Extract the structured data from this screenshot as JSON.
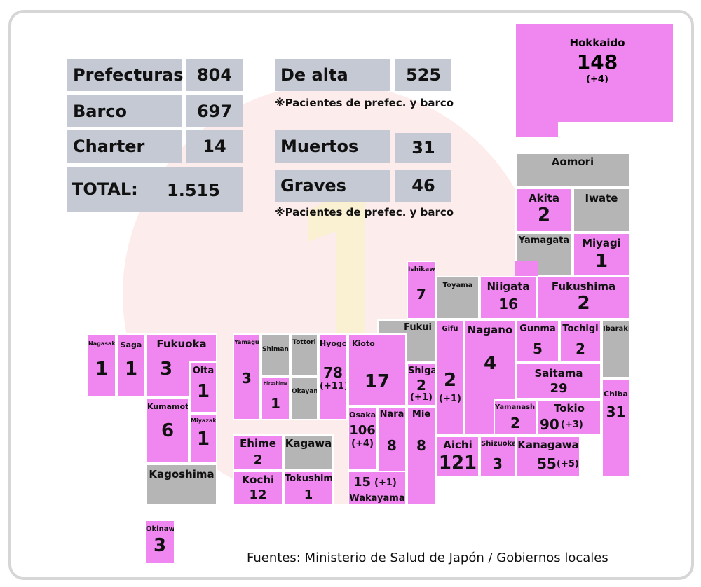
{
  "colors": {
    "infected": "#f087f0",
    "no_cases": "#b5b5b5",
    "stat_box": "#c5c9d3",
    "frame": "#d6d6d6"
  },
  "stats": {
    "prefecturas": {
      "label": "Prefecturas",
      "value": "804"
    },
    "barco": {
      "label": "Barco",
      "value": "697"
    },
    "charter": {
      "label": "Charter",
      "value": "14"
    },
    "total": {
      "label": "TOTAL:",
      "value": "1.515"
    },
    "de_alta": {
      "label": "De alta",
      "value": "525"
    },
    "muertos": {
      "label": "Muertos",
      "value": "31"
    },
    "graves": {
      "label": "Graves",
      "value": "46"
    },
    "note1": "※Pacientes de prefec. y barco",
    "note2": "※Pacientes de prefec. y barco"
  },
  "prefectures": {
    "hokkaido": {
      "name": "Hokkaido",
      "value": "148",
      "delta": "(+4)"
    },
    "aomori": {
      "name": "Aomori"
    },
    "akita": {
      "name": "Akita",
      "value": "2"
    },
    "iwate": {
      "name": "Iwate"
    },
    "yamagata": {
      "name": "Yamagata"
    },
    "miyagi": {
      "name": "Miyagi",
      "value": "1"
    },
    "ishikawa": {
      "name": "Ishikawa",
      "value": "7"
    },
    "toyama": {
      "name": "Toyama"
    },
    "niigata": {
      "name": "Niigata",
      "value": "16"
    },
    "fukushima": {
      "name": "Fukushima",
      "value": "2"
    },
    "fukui": {
      "name": "Fukui"
    },
    "gifu": {
      "name": "Gifu",
      "value": "2",
      "delta": "(+1)"
    },
    "nagano": {
      "name": "Nagano",
      "value": "4"
    },
    "gunma": {
      "name": "Gunma",
      "value": "5"
    },
    "tochigi": {
      "name": "Tochigi",
      "value": "2"
    },
    "ibaraki": {
      "name": "Ibaraki"
    },
    "saitama": {
      "name": "Saitama",
      "value": "29"
    },
    "chiba": {
      "name": "Chiba",
      "value": "31"
    },
    "yamanashi": {
      "name": "Yamanashi",
      "value": "2"
    },
    "tokio": {
      "name": "Tokio",
      "value": "90",
      "delta": "(+3)"
    },
    "aichi": {
      "name": "Aichi",
      "value": "121"
    },
    "shizuoka": {
      "name": "Shizuoka",
      "value": "3"
    },
    "kanagawa": {
      "name": "Kanagawa",
      "value": "55",
      "delta": "(+5)"
    },
    "kioto": {
      "name": "Kioto",
      "value": "17"
    },
    "shiga": {
      "name": "Shiga",
      "value": "2",
      "delta": "(+1)"
    },
    "osaka": {
      "name": "Osaka",
      "value": "106",
      "delta": "(+4)"
    },
    "nara": {
      "name": "Nara",
      "value": "8"
    },
    "mie": {
      "name": "Mie",
      "value": "8"
    },
    "wakayama": {
      "name": "Wakayama",
      "value": "15",
      "delta": "(+1)"
    },
    "hyogo": {
      "name": "Hyogo",
      "value": "78",
      "delta": "(+11)"
    },
    "tottori": {
      "name": "Tottori"
    },
    "shimane": {
      "name": "Shimane"
    },
    "okayama": {
      "name": "Okayama"
    },
    "hiroshima": {
      "name": "Hiroshima",
      "value": "1"
    },
    "yamaguchi": {
      "name": "Yamaguchi",
      "value": "3"
    },
    "ehime": {
      "name": "Ehime",
      "value": "2"
    },
    "kagawa": {
      "name": "Kagawa"
    },
    "kochi": {
      "name": "Kochi",
      "value": "12"
    },
    "tokushima": {
      "name": "Tokushima",
      "value": "1"
    },
    "nagasaki": {
      "name": "Nagasaki",
      "value": "1"
    },
    "saga": {
      "name": "Saga",
      "value": "1"
    },
    "fukuoka": {
      "name": "Fukuoka",
      "value": "3"
    },
    "oita": {
      "name": "Oita",
      "value": "1"
    },
    "kumamoto": {
      "name": "Kumamoto",
      "value": "6"
    },
    "miyazaki": {
      "name": "Miyazaki",
      "value": "1"
    },
    "kagoshima": {
      "name": "Kagoshima"
    },
    "okinawa": {
      "name": "Okinawa",
      "value": "3"
    }
  },
  "source": "Fuentes: Ministerio de Salud de Japón / Gobiernos locales"
}
